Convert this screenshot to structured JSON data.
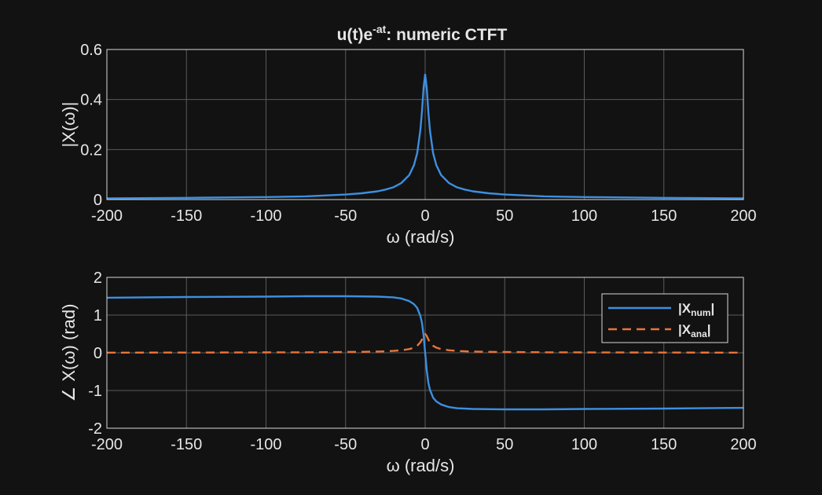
{
  "title": {
    "main": "u(t)e",
    "sup": "-at",
    "rest": ":  numeric  CTFT"
  },
  "chart_data": [
    {
      "type": "line",
      "xlabel": "ω  (rad/s)",
      "ylabel": "|X(ω)|",
      "xlim": [
        -200,
        200
      ],
      "ylim": [
        0,
        0.6
      ],
      "xticks": [
        -200,
        -150,
        -100,
        -50,
        0,
        50,
        100,
        150,
        200
      ],
      "yticks": [
        0,
        0.2,
        0.4,
        0.6
      ],
      "ytick_labels": [
        "0",
        "0.2",
        "0.4",
        "0.6"
      ],
      "grid": true,
      "series": [
        {
          "color": "#3d8fe0",
          "x": [
            -200,
            -150,
            -100,
            -75,
            -50,
            -40,
            -30,
            -25,
            -20,
            -15,
            -10,
            -7,
            -5,
            -3,
            -2,
            -1,
            0,
            1,
            2,
            3,
            5,
            7,
            10,
            15,
            20,
            25,
            30,
            40,
            50,
            75,
            100,
            150,
            200
          ],
          "y": [
            0.005,
            0.007,
            0.01,
            0.013,
            0.02,
            0.025,
            0.033,
            0.04,
            0.049,
            0.066,
            0.098,
            0.138,
            0.186,
            0.277,
            0.354,
            0.447,
            0.5,
            0.447,
            0.354,
            0.277,
            0.186,
            0.138,
            0.098,
            0.066,
            0.049,
            0.04,
            0.033,
            0.025,
            0.02,
            0.013,
            0.01,
            0.007,
            0.005
          ]
        }
      ]
    },
    {
      "type": "line",
      "xlabel": "ω  (rad/s)",
      "ylabel": "∠ X(ω)  (rad)",
      "xlim": [
        -200,
        200
      ],
      "ylim": [
        -2,
        2
      ],
      "xticks": [
        -200,
        -150,
        -100,
        -50,
        0,
        50,
        100,
        150,
        200
      ],
      "yticks": [
        -2,
        -1,
        0,
        1,
        2
      ],
      "ytick_labels": [
        "-2",
        "-1",
        "0",
        "1",
        "2"
      ],
      "grid": true,
      "legend_position": "top-right",
      "series": [
        {
          "name": "|X",
          "name_sub": "num",
          "name_end": "|",
          "color": "#3d8fe0",
          "dash": "solid",
          "x": [
            -200,
            -150,
            -100,
            -75,
            -50,
            -30,
            -20,
            -15,
            -10,
            -7,
            -5,
            -3,
            -2,
            -1,
            0,
            1,
            2,
            3,
            5,
            7,
            10,
            15,
            20,
            30,
            50,
            75,
            100,
            150,
            200
          ],
          "y": [
            1.46,
            1.48,
            1.49,
            1.5,
            1.5,
            1.49,
            1.47,
            1.44,
            1.37,
            1.29,
            1.19,
            0.98,
            0.79,
            0.46,
            0,
            -0.46,
            -0.79,
            -0.98,
            -1.19,
            -1.29,
            -1.37,
            -1.44,
            -1.47,
            -1.49,
            -1.5,
            -1.5,
            -1.49,
            -1.48,
            -1.46
          ]
        },
        {
          "name": "|X",
          "name_sub": "ana",
          "name_end": "|",
          "color": "#e8743b",
          "dash": "dashed",
          "x": [
            -200,
            -150,
            -100,
            -75,
            -50,
            -40,
            -30,
            -25,
            -20,
            -15,
            -10,
            -7,
            -5,
            -3,
            -2,
            -1,
            0,
            1,
            2,
            3,
            5,
            7,
            10,
            15,
            20,
            25,
            30,
            40,
            50,
            75,
            100,
            150,
            200
          ],
          "y": [
            0.005,
            0.007,
            0.01,
            0.013,
            0.02,
            0.025,
            0.033,
            0.04,
            0.049,
            0.066,
            0.098,
            0.138,
            0.186,
            0.277,
            0.354,
            0.447,
            0.5,
            0.447,
            0.354,
            0.277,
            0.186,
            0.138,
            0.098,
            0.066,
            0.049,
            0.04,
            0.033,
            0.025,
            0.02,
            0.013,
            0.01,
            0.007,
            0.005
          ]
        }
      ]
    }
  ],
  "colors": {
    "background": "#121212",
    "axes_edge": "#d8d8d8",
    "grid": "#5a5a5a",
    "text": "#e6e6e6"
  }
}
